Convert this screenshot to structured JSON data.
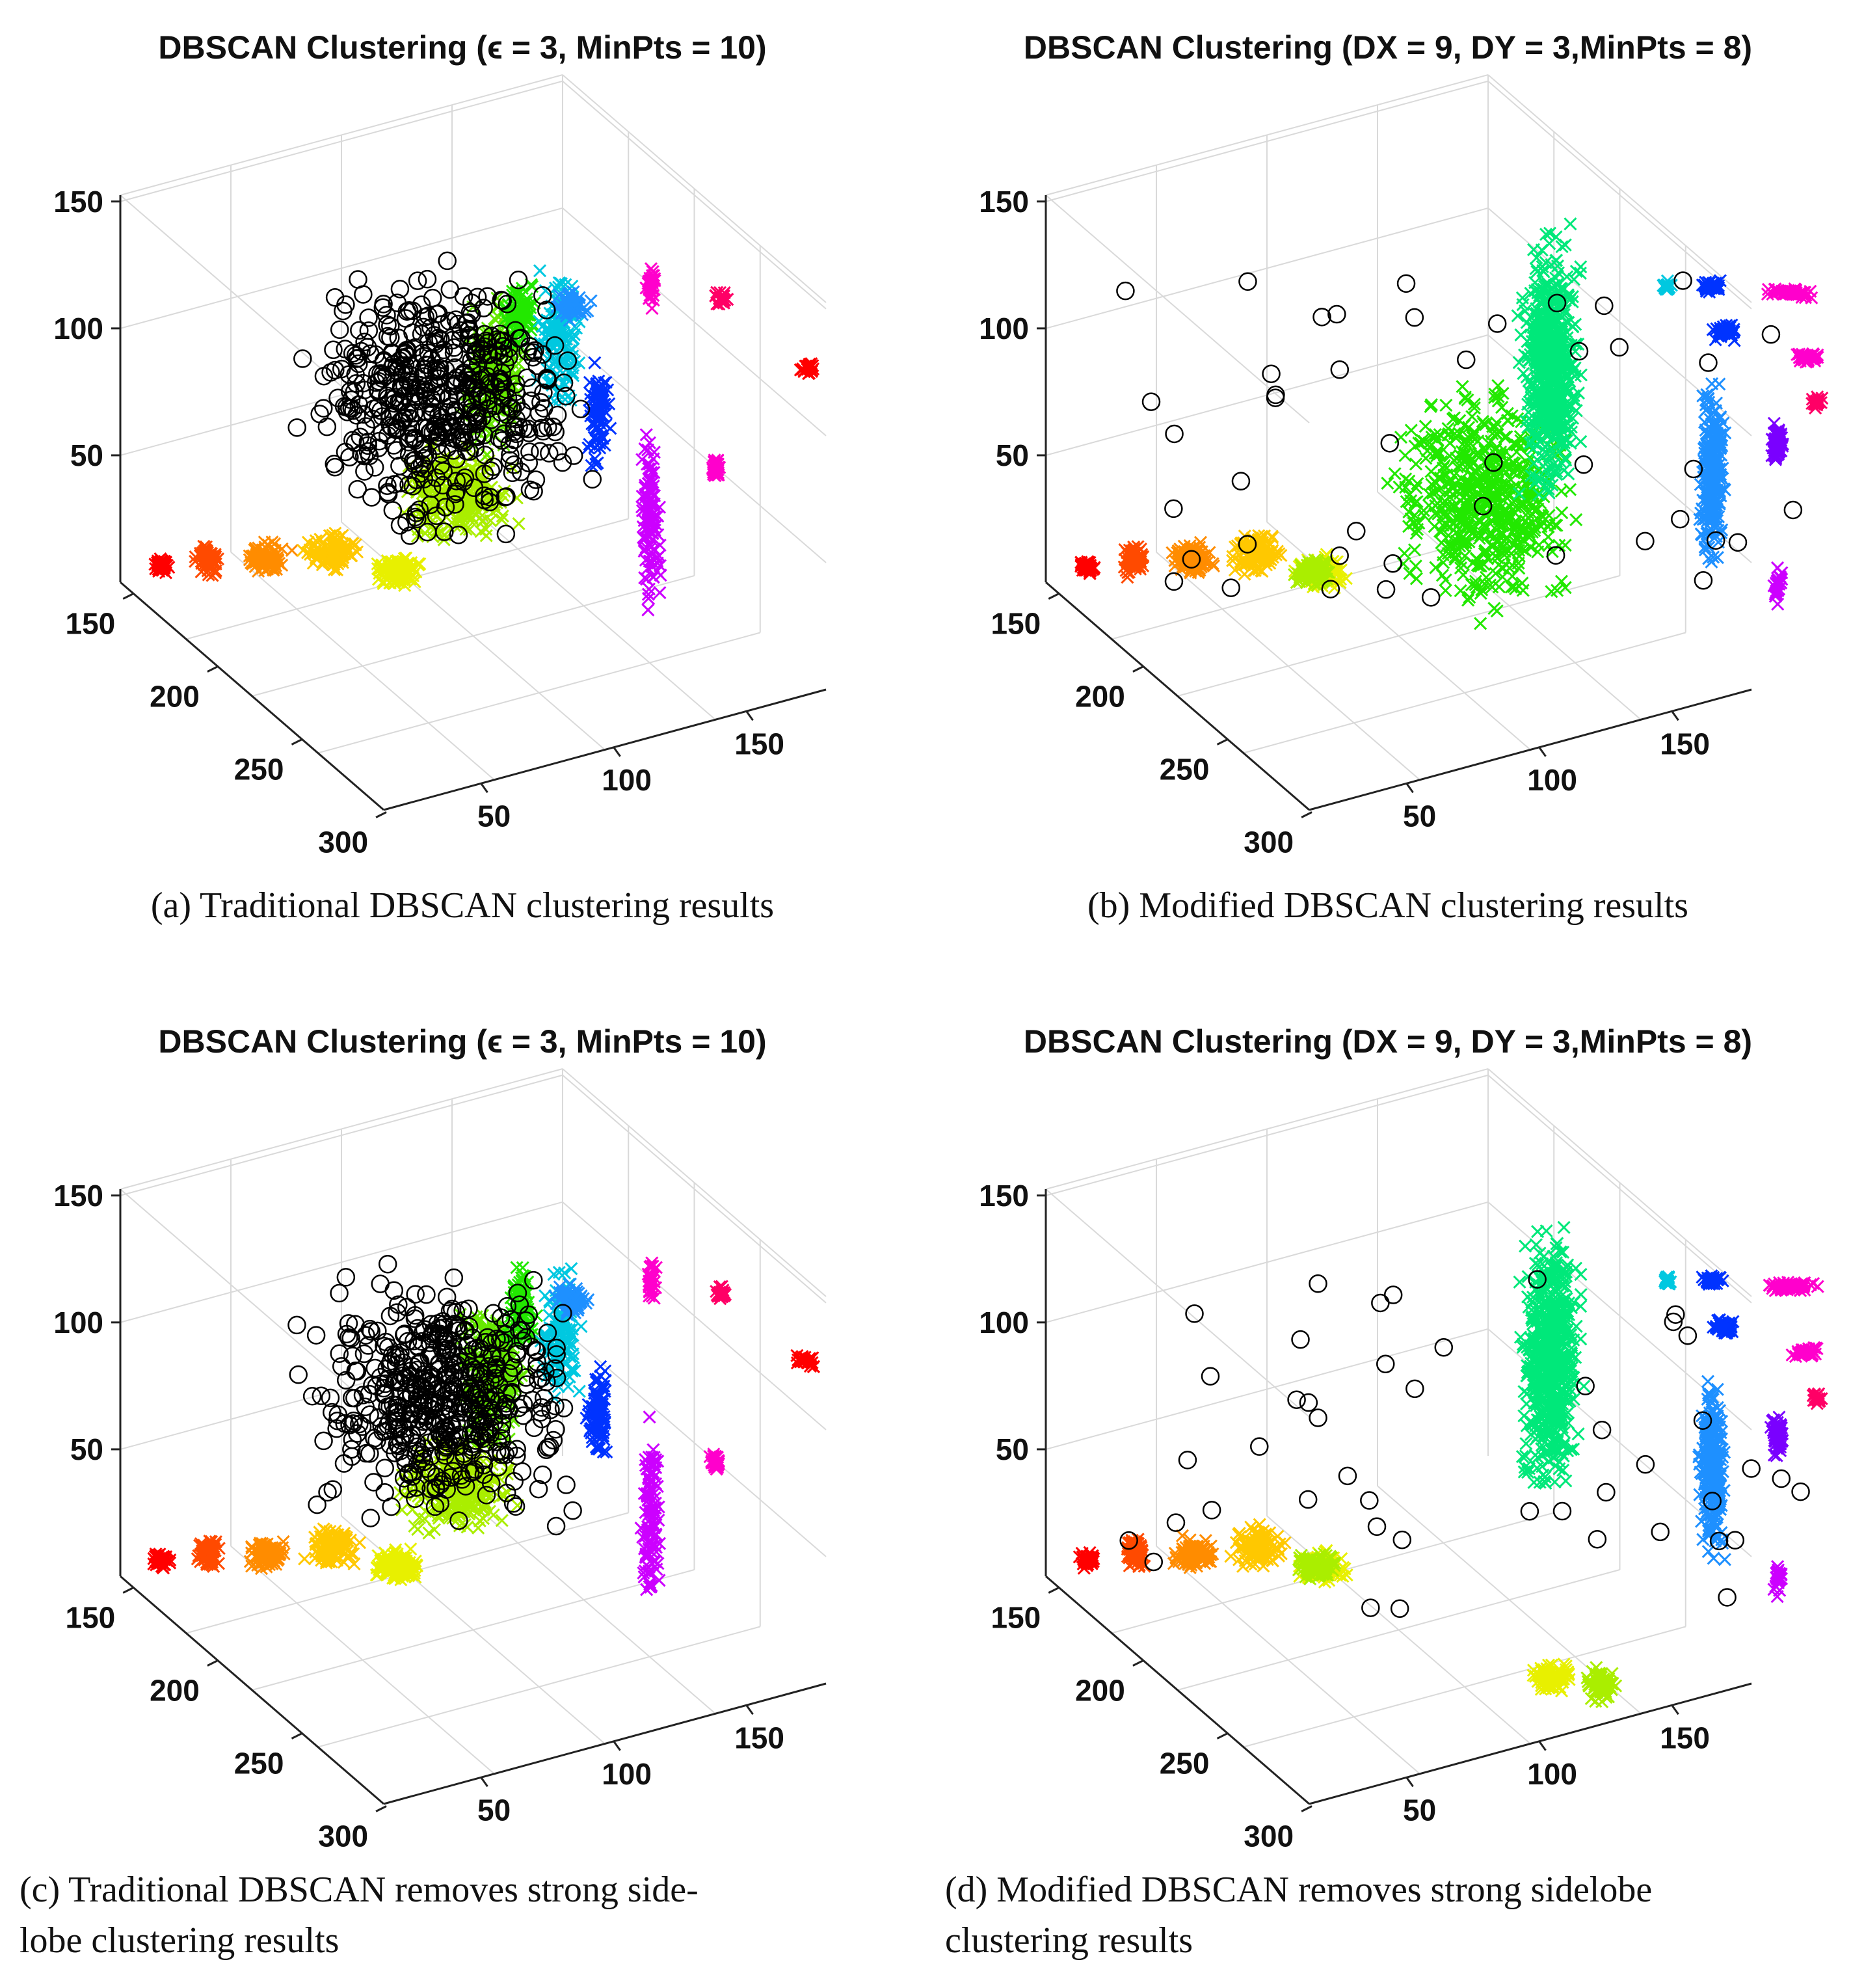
{
  "figure": {
    "panels": [
      {
        "id": "a",
        "title": "DBSCAN Clustering (ϵ = 3, MinPts = 10)",
        "caption": [
          "(a)  Traditional DBSCAN clustering results"
        ]
      },
      {
        "id": "b",
        "title": "DBSCAN Clustering (DX = 9, DY = 3,MinPts = 8)",
        "caption": [
          "(b)  Modified DBSCAN clustering results"
        ]
      },
      {
        "id": "c",
        "title": "DBSCAN Clustering (ϵ = 3, MinPts = 10)",
        "caption": [
          "(c)  Traditional DBSCAN removes strong side-",
          "lobe clustering results"
        ]
      },
      {
        "id": "d",
        "title": "DBSCAN Clustering (DX = 9, DY = 3,MinPts = 8)",
        "caption": [
          "(d)  Modified DBSCAN removes strong sidelobe",
          "clustering results"
        ]
      }
    ]
  },
  "chart_data": [
    {
      "type": "scatter",
      "title": "DBSCAN Clustering (ϵ = 3, MinPts = 10)",
      "caption": "(a) Traditional DBSCAN clustering results",
      "variant": "traditional",
      "axes": {
        "z_ticks": [
          "50",
          "100",
          "150"
        ],
        "y_ticks": [
          "150",
          "200",
          "250",
          "300"
        ],
        "x_ticks": [
          "50",
          "100",
          "150"
        ],
        "zlim": [
          0,
          150
        ],
        "ylim": [
          130,
          300
        ],
        "xlim": [
          0,
          170
        ]
      },
      "markers": {
        "cluster": "x",
        "noise": "o"
      },
      "cluster_colors": [
        "#ff0000",
        "#ff4a00",
        "#ff8c00",
        "#ffc800",
        "#e8f000",
        "#aaee00",
        "#66e800",
        "#22e800",
        "#00e87a",
        "#00c8e0",
        "#1e90ff",
        "#0033ff",
        "#7a00ff",
        "#cc00ff",
        "#ff00cc",
        "#ff0066"
      ],
      "noise_color": "#000000",
      "grid": true
    },
    {
      "type": "scatter",
      "title": "DBSCAN Clustering (DX = 9, DY = 3,MinPts = 8)",
      "caption": "(b) Modified DBSCAN clustering results",
      "variant": "modified",
      "axes": {
        "z_ticks": [
          "50",
          "100",
          "150"
        ],
        "y_ticks": [
          "150",
          "200",
          "250",
          "300"
        ],
        "x_ticks": [
          "50",
          "100",
          "150"
        ],
        "zlim": [
          0,
          150
        ],
        "ylim": [
          130,
          300
        ],
        "xlim": [
          0,
          170
        ]
      },
      "markers": {
        "cluster": "x",
        "noise": "o"
      },
      "cluster_colors": [
        "#ff0000",
        "#ff4a00",
        "#ff8c00",
        "#ffc800",
        "#e8f000",
        "#aaee00",
        "#66e800",
        "#22e800",
        "#00e87a",
        "#00c8e0",
        "#1e90ff",
        "#0033ff",
        "#7a00ff",
        "#cc00ff",
        "#ff00cc",
        "#ff0066"
      ],
      "noise_color": "#000000",
      "grid": true
    },
    {
      "type": "scatter",
      "title": "DBSCAN Clustering (ϵ = 3, MinPts = 10)",
      "caption": "(c) Traditional DBSCAN removes strong sidelobe clustering results",
      "variant": "traditional-removed",
      "axes": {
        "z_ticks": [
          "50",
          "100",
          "150"
        ],
        "y_ticks": [
          "150",
          "200",
          "250",
          "300"
        ],
        "x_ticks": [
          "50",
          "100",
          "150"
        ],
        "zlim": [
          0,
          150
        ],
        "ylim": [
          130,
          300
        ],
        "xlim": [
          0,
          170
        ]
      },
      "markers": {
        "cluster": "x",
        "noise": "o"
      },
      "cluster_colors": [
        "#ff0000",
        "#ff4a00",
        "#ff8c00",
        "#ffc800",
        "#e8f000",
        "#aaee00",
        "#66e800",
        "#22e800",
        "#00e87a",
        "#00c8e0",
        "#1e90ff",
        "#0033ff",
        "#7a00ff",
        "#cc00ff",
        "#ff00cc",
        "#ff0066"
      ],
      "noise_color": "#000000",
      "grid": true
    },
    {
      "type": "scatter",
      "title": "DBSCAN Clustering (DX = 9, DY = 3,MinPts = 8)",
      "caption": "(d) Modified DBSCAN removes strong sidelobe clustering results",
      "variant": "modified-removed",
      "axes": {
        "z_ticks": [
          "50",
          "100",
          "150"
        ],
        "y_ticks": [
          "150",
          "200",
          "250",
          "300"
        ],
        "x_ticks": [
          "50",
          "100",
          "150"
        ],
        "zlim": [
          0,
          150
        ],
        "ylim": [
          130,
          300
        ],
        "xlim": [
          0,
          170
        ]
      },
      "markers": {
        "cluster": "x",
        "noise": "o"
      },
      "cluster_colors": [
        "#ff0000",
        "#ff4a00",
        "#ff8c00",
        "#ffc800",
        "#e8f000",
        "#aaee00",
        "#66e800",
        "#22e800",
        "#00e87a",
        "#00c8e0",
        "#1e90ff",
        "#0033ff",
        "#7a00ff",
        "#cc00ff",
        "#ff00cc",
        "#ff0066"
      ],
      "noise_color": "#000000",
      "grid": true
    }
  ]
}
